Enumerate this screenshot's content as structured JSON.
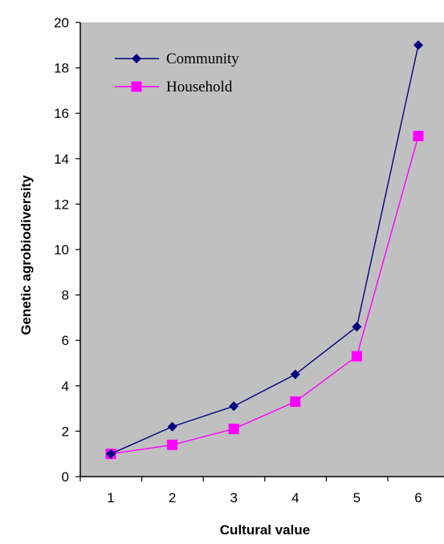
{
  "chart_data": {
    "type": "line",
    "x": [
      1,
      2,
      3,
      4,
      5,
      6
    ],
    "series": [
      {
        "name": "Community",
        "values": [
          1,
          2.2,
          3.1,
          4.5,
          6.6,
          19
        ],
        "color": "#000080",
        "marker": "diamond"
      },
      {
        "name": "Household",
        "values": [
          1,
          1.4,
          2.1,
          3.3,
          5.3,
          15
        ],
        "color": "#ff00ff",
        "marker": "square"
      }
    ],
    "xlabel": "Cultural value",
    "ylabel": "Genetic agrobiodiversity",
    "xticks": [
      "1",
      "2",
      "3",
      "4",
      "5",
      "6"
    ],
    "yticks": [
      "0",
      "2",
      "4",
      "6",
      "8",
      "10",
      "12",
      "14",
      "16",
      "18",
      "20"
    ],
    "ylim": [
      0,
      20
    ],
    "grid": false,
    "legend_position": "top-left",
    "plot_background": "#c0c0c0"
  }
}
